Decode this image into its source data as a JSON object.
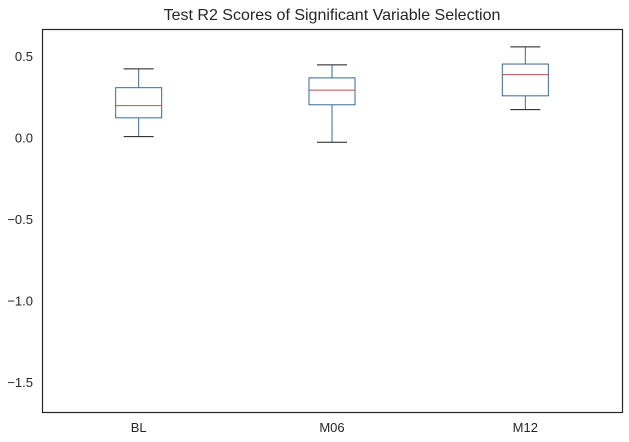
{
  "chart_data": {
    "type": "boxplot",
    "title": "Test R2 Scores of Significant Variable Selection",
    "xlabel": "",
    "ylabel": "",
    "categories": [
      "BL",
      "M06",
      "M12"
    ],
    "boxes": [
      {
        "name": "BL",
        "whisker_low": 0.01,
        "q1": 0.125,
        "median": 0.2,
        "q3": 0.31,
        "whisker_high": 0.425
      },
      {
        "name": "M06",
        "whisker_low": -0.025,
        "q1": 0.205,
        "median": 0.295,
        "q3": 0.37,
        "whisker_high": 0.45
      },
      {
        "name": "M12",
        "whisker_low": 0.175,
        "q1": 0.26,
        "median": 0.39,
        "q3": 0.455,
        "whisker_high": 0.56
      }
    ],
    "ylim": [
      -1.68,
      0.67
    ],
    "yticks": [
      0.5,
      0.0,
      -0.5,
      -1.0,
      -1.5
    ],
    "ytick_labels": [
      "0.5",
      "0.0",
      "−0.5",
      "−1.0",
      "−1.5"
    ],
    "grid": false,
    "colors": {
      "box": "#3a6a9a",
      "median": "#c0504d",
      "whisker": "#3a6a9a",
      "cap": "#1a1a1a",
      "frame": "#262626"
    }
  }
}
